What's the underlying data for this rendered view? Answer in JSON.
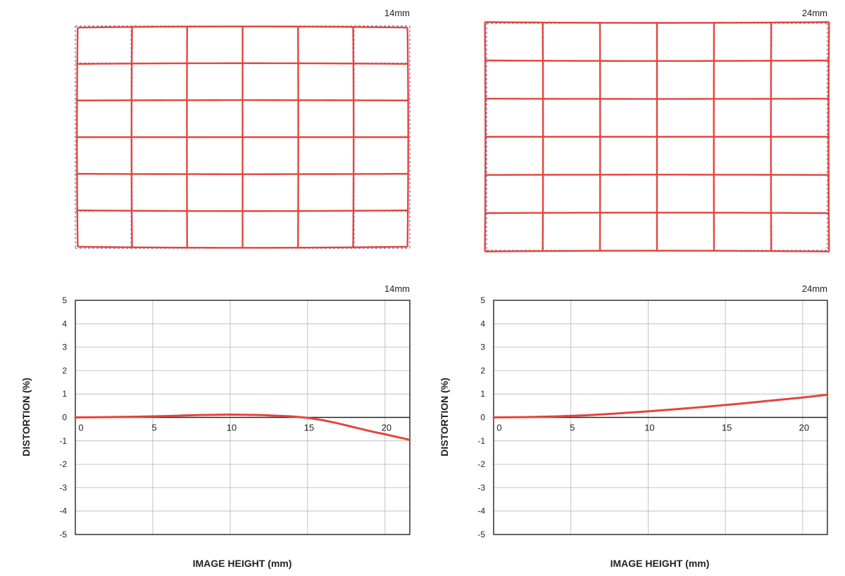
{
  "colors": {
    "distorted_grid": "#e2463b",
    "ideal_grid": "#6f6fc4",
    "curve": "#e2463b",
    "axis": "#222222",
    "gridline": "#b5b5b5"
  },
  "grids": [
    {
      "label": "14mm",
      "style": "barrel",
      "columns": 6,
      "rows": 6
    },
    {
      "label": "24mm",
      "style": "pincushion",
      "columns": 6,
      "rows": 6
    }
  ],
  "chart_data": [
    {
      "type": "line",
      "title": "14mm",
      "xlabel": "IMAGE HEIGHT (mm)",
      "ylabel": "DISTORTION (%)",
      "xlim": [
        0,
        21.6
      ],
      "ylim": [
        -5,
        5
      ],
      "xticks": [
        0,
        5,
        10,
        15,
        20
      ],
      "yticks": [
        5,
        4,
        3,
        2,
        1,
        0,
        -1,
        -2,
        -3,
        -4,
        -5
      ],
      "grid": true,
      "series": [
        {
          "x": [
            0,
            2,
            4,
            6,
            8,
            10,
            12,
            14,
            15,
            16,
            17,
            18,
            19,
            20,
            21,
            21.6
          ],
          "y": [
            0,
            0.01,
            0.03,
            0.06,
            0.1,
            0.12,
            0.1,
            0.04,
            -0.02,
            -0.12,
            -0.26,
            -0.42,
            -0.58,
            -0.72,
            -0.87,
            -0.96
          ]
        }
      ]
    },
    {
      "type": "line",
      "title": "24mm",
      "xlabel": "IMAGE HEIGHT (mm)",
      "ylabel": "DISTORTION (%)",
      "xlim": [
        0,
        21.6
      ],
      "ylim": [
        -5,
        5
      ],
      "xticks": [
        0,
        5,
        10,
        15,
        20
      ],
      "yticks": [
        5,
        4,
        3,
        2,
        1,
        0,
        -1,
        -2,
        -3,
        -4,
        -5
      ],
      "grid": true,
      "series": [
        {
          "x": [
            0,
            2,
            4,
            6,
            8,
            10,
            12,
            14,
            16,
            18,
            20,
            21.6
          ],
          "y": [
            0,
            0.01,
            0.04,
            0.09,
            0.17,
            0.26,
            0.36,
            0.47,
            0.59,
            0.72,
            0.85,
            0.97
          ]
        }
      ]
    }
  ]
}
